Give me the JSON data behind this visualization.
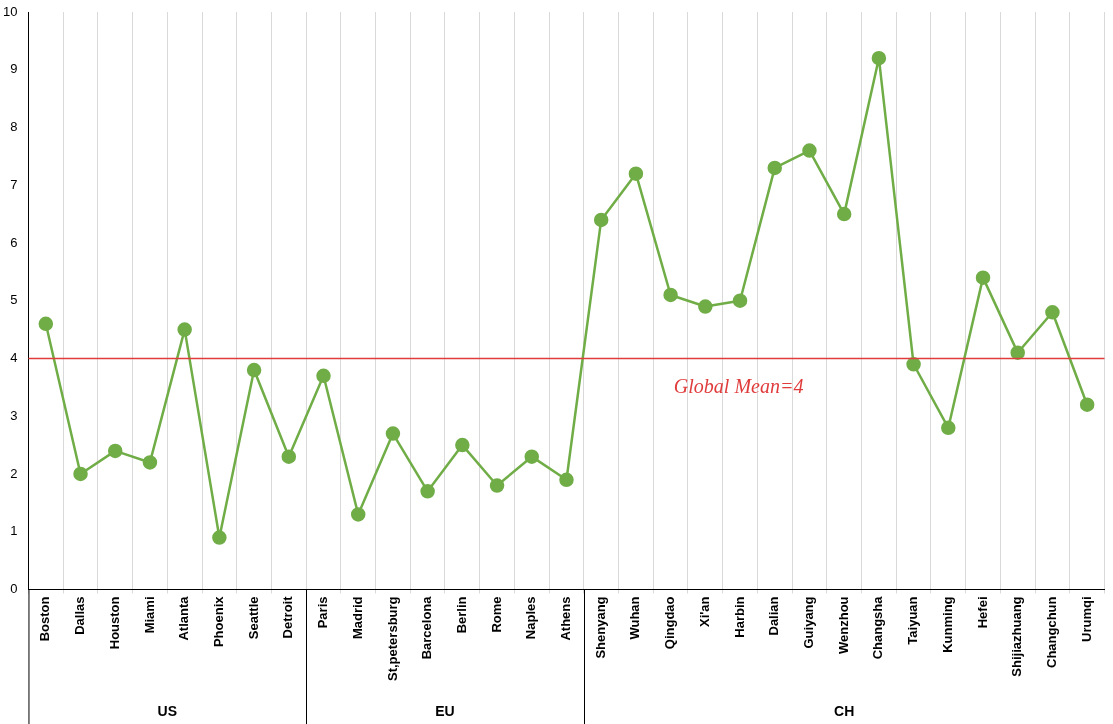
{
  "chart_data": {
    "type": "line",
    "categories": [
      "Boston",
      "Dallas",
      "Houston",
      "Miami",
      "Atlanta",
      "Phoenix",
      "Seattle",
      "Detroit",
      "Paris",
      "Madrid",
      "St,petersburg",
      "Barcelona",
      "Berlin",
      "Rome",
      "Naples",
      "Athens",
      "Shenyang",
      "Wuhan",
      "Qingdao",
      "Xi'an",
      "Harbin",
      "Dalian",
      "Guiyang",
      "Wenzhou",
      "Changsha",
      "Taiyuan",
      "Kunming",
      "Hefei",
      "Shijiazhuang",
      "Changchun",
      "Urumqi"
    ],
    "series": [
      {
        "color": "#70ad47",
        "values": [
          4.6,
          2.0,
          2.4,
          2.2,
          4.5,
          0.9,
          3.8,
          2.3,
          3.7,
          1.3,
          2.7,
          1.7,
          2.5,
          1.8,
          2.3,
          1.9,
          6.4,
          7.2,
          5.1,
          4.9,
          5.0,
          7.3,
          7.6,
          6.5,
          9.2,
          3.9,
          2.8,
          5.4,
          4.1,
          4.8,
          3.2
        ]
      }
    ],
    "ylim": [
      0,
      10
    ],
    "yticks": [
      0,
      1,
      2,
      3,
      4,
      5,
      6,
      7,
      8,
      9,
      10
    ],
    "grid": "x",
    "legend": false,
    "marker": "circle",
    "line_style": "solid",
    "ref_lines": [
      {
        "axis": "y",
        "value": 4,
        "label": "Global Mean=4",
        "color": "#e03c3c"
      }
    ],
    "annotations": [
      "US",
      "EU",
      "CH"
    ]
  }
}
